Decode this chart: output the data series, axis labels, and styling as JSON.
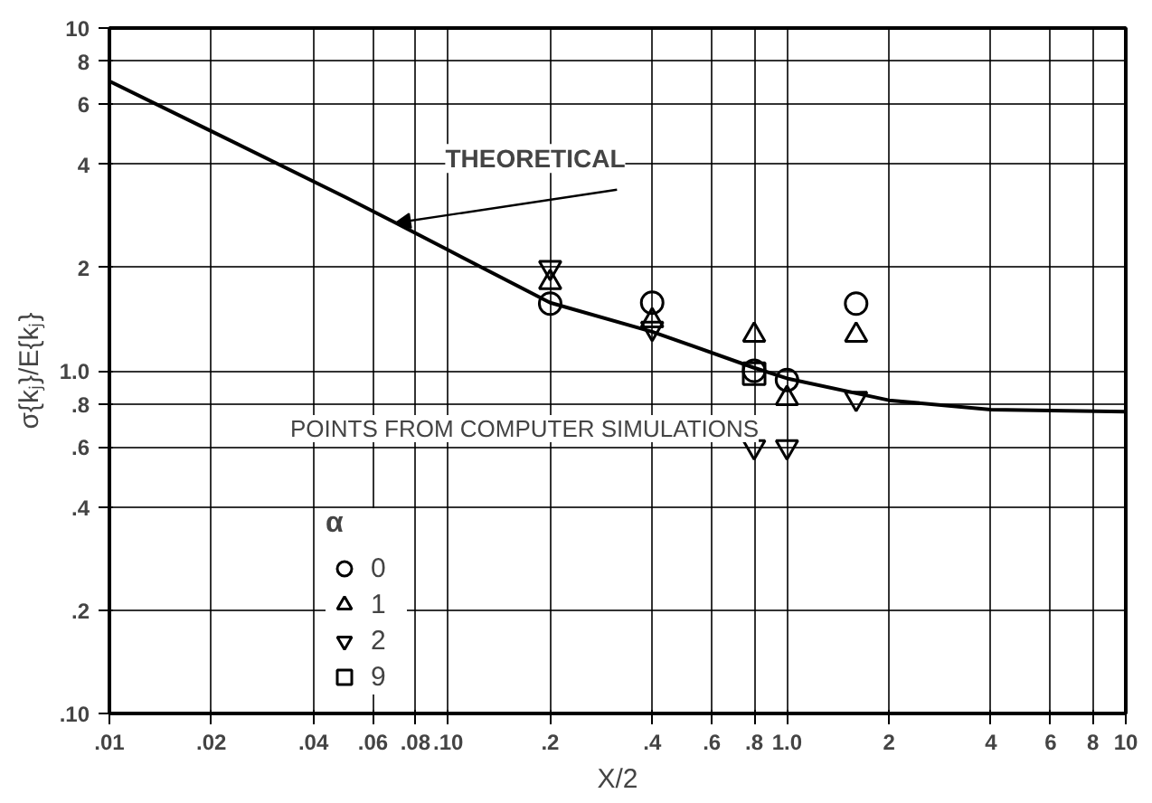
{
  "chart_data": {
    "type": "scatter",
    "xlabel": "X/2",
    "ylabel": "σ{kⱼ}/E{kⱼ}",
    "legend_title": "α",
    "log": "xy",
    "grid": true,
    "legend": "bottom left",
    "xlim": [
      0.01,
      10
    ],
    "ylim": [
      0.1,
      10
    ],
    "xticks": [
      {
        "value": 0.01,
        "label": ".01"
      },
      {
        "value": 0.02,
        "label": ".02"
      },
      {
        "value": 0.04,
        "label": ".04"
      },
      {
        "value": 0.06,
        "label": ".06"
      },
      {
        "value": 0.08,
        "label": ".08"
      },
      {
        "value": 0.1,
        "label": ".10"
      },
      {
        "value": 0.2,
        "label": ".2"
      },
      {
        "value": 0.4,
        "label": ".4"
      },
      {
        "value": 0.6,
        "label": ".6"
      },
      {
        "value": 0.8,
        "label": ".8"
      },
      {
        "value": 1,
        "label": "1.0"
      },
      2,
      4,
      6,
      8,
      10
    ],
    "yticks": [
      {
        "value": 0.1,
        "label": ".10"
      },
      {
        "value": 0.2,
        "label": ".2"
      },
      {
        "value": 0.4,
        "label": ".4"
      },
      {
        "value": 0.6,
        "label": ".6"
      },
      {
        "value": 0.8,
        "label": ".8"
      },
      {
        "value": 1,
        "label": "1.0"
      },
      2,
      4,
      6,
      8,
      10
    ],
    "annotations": [
      {
        "text": "THEORETICAL",
        "x": 0.07,
        "y": 2.7
      },
      "POINTS FROM COMPUTER SIMULATIONS"
    ],
    "series": [
      {
        "type": "line",
        "color": "#000000",
        "line_style": "solid",
        "x": [
          0.01,
          0.02,
          0.05,
          0.07,
          0.1,
          0.2,
          0.4,
          0.8,
          1.0,
          2,
          4,
          10
        ],
        "values": [
          7.0,
          5.0,
          3.2,
          2.7,
          2.25,
          1.58,
          1.3,
          1.02,
          0.95,
          0.82,
          0.77,
          0.76
        ]
      },
      {
        "name": "0",
        "color": "#000000",
        "marker": "circle",
        "x": [
          0.2,
          0.4,
          0.8,
          1.0,
          1.6
        ],
        "values": [
          1.57,
          1.58,
          1.0,
          0.94,
          1.57
        ]
      },
      {
        "name": "1",
        "color": "#000000",
        "marker": "triangle",
        "x": [
          0.2,
          0.4,
          0.8,
          1.0,
          1.6
        ],
        "values": [
          1.81,
          1.4,
          1.27,
          0.83,
          1.27
        ]
      },
      {
        "name": "2",
        "color": "#000000",
        "x": [
          0.2,
          0.4,
          0.8,
          1.0,
          1.6
        ],
        "values": [
          2.0,
          1.33,
          0.6,
          0.6,
          0.83
        ]
      },
      {
        "name": "9",
        "color": "#000000",
        "marker": "square",
        "x": [
          0.8
        ],
        "values": [
          0.98
        ]
      }
    ]
  }
}
